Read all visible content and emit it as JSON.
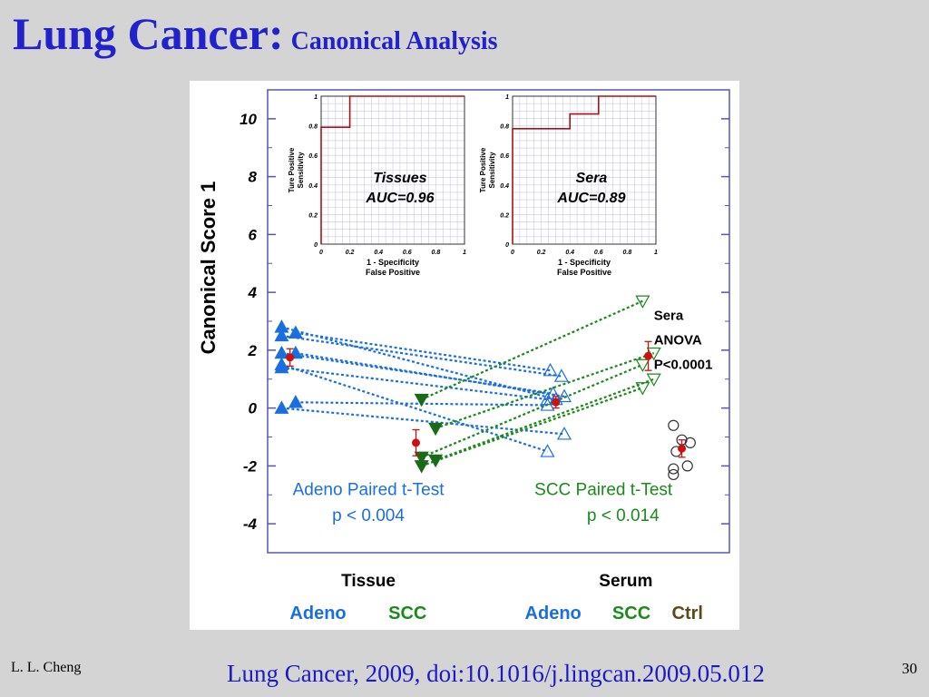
{
  "slide": {
    "title_main": "Lung Cancer:",
    "title_sub": "Canonical Analysis",
    "author": "L. L. Cheng",
    "citation": "Lung Cancer, 2009, doi:10.1016/j.lingcan.2009.05.012",
    "page_number": "30"
  },
  "colors": {
    "title": "#2222cc",
    "adeno": "#1a6fe0",
    "scc": "#1a8a1a",
    "ctrl": "#5a4a1a",
    "mean": "#cc1111",
    "axis_frame": "#5555bb",
    "roc_line": "#b01010"
  },
  "chart_data": [
    {
      "type": "scatter",
      "ylabel": "Canonical Score 1",
      "ylim": [
        -5,
        11
      ],
      "yticks": [
        "10",
        "8",
        "6",
        "4",
        "2",
        "0",
        "-2",
        "-4"
      ],
      "ytick_values": [
        10,
        8,
        6,
        4,
        2,
        0,
        -2,
        -4
      ],
      "group_headers": [
        {
          "label": "Tissue",
          "x": 0.36
        },
        {
          "label": "Serum",
          "x": 1.28
        }
      ],
      "group_labels": [
        {
          "label": "Adeno",
          "x": 0.18,
          "color": "#1a6fe0"
        },
        {
          "label": "SCC",
          "x": 0.5,
          "color": "#1a8a1a"
        },
        {
          "label": "Adeno",
          "x": 1.02,
          "color": "#1a6fe0"
        },
        {
          "label": "SCC",
          "x": 1.3,
          "color": "#1a8a1a"
        },
        {
          "label": "Ctrl",
          "x": 1.5,
          "color": "#5a4a1a"
        }
      ],
      "annotations": [
        {
          "text": "Adeno Paired t-Test",
          "x": 0.36,
          "y": -3.0,
          "color": "#1a6fe0"
        },
        {
          "text": "p < 0.004",
          "x": 0.36,
          "y": -3.9,
          "color": "#1a6fe0"
        },
        {
          "text": "SCC Paired t-Test",
          "x": 1.2,
          "y": -3.0,
          "color": "#1a8a1a"
        },
        {
          "text": "p < 0.014",
          "x": 1.27,
          "y": -3.9,
          "color": "#1a8a1a"
        },
        {
          "text": "Sera",
          "x": 1.38,
          "y": 3.05,
          "color": "#000000"
        },
        {
          "text": "ANOVA",
          "x": 1.38,
          "y": 2.2,
          "color": "#000000"
        },
        {
          "text": "P<0.0001",
          "x": 1.38,
          "y": 1.35,
          "color": "#000000"
        }
      ],
      "adeno_pairs": [
        {
          "tissue": [
            0.1,
            2.6
          ],
          "serum": [
            1.01,
            1.3
          ]
        },
        {
          "tissue": [
            0.05,
            2.5
          ],
          "serum": [
            1.05,
            1.1
          ]
        },
        {
          "tissue": [
            0.05,
            1.9
          ],
          "serum": [
            1.02,
            0.5
          ]
        },
        {
          "tissue": [
            0.1,
            1.9
          ],
          "serum": [
            1.06,
            0.4
          ]
        },
        {
          "tissue": [
            0.05,
            1.4
          ],
          "serum": [
            1.0,
            0.3
          ]
        },
        {
          "tissue": [
            0.05,
            2.8
          ],
          "serum": [
            1.03,
            0.3
          ]
        },
        {
          "tissue": [
            0.1,
            0.2
          ],
          "serum": [
            1.0,
            0.1
          ]
        },
        {
          "tissue": [
            0.05,
            0.0
          ],
          "serum": [
            1.06,
            -0.9
          ]
        },
        {
          "tissue": [
            0.05,
            1.5
          ],
          "serum": [
            1.0,
            -1.5
          ]
        }
      ],
      "scc_pairs": [
        {
          "tissue": [
            0.55,
            0.3
          ],
          "serum": [
            1.34,
            3.7
          ]
        },
        {
          "tissue": [
            0.6,
            -0.7
          ],
          "serum": [
            1.38,
            1.9
          ]
        },
        {
          "tissue": [
            0.55,
            -1.7
          ],
          "serum": [
            1.34,
            1.5
          ]
        },
        {
          "tissue": [
            0.6,
            -1.8
          ],
          "serum": [
            1.38,
            1.0
          ]
        },
        {
          "tissue": [
            0.55,
            -2.0
          ],
          "serum": [
            1.34,
            0.7
          ]
        }
      ],
      "ctrl_points": [
        [
          1.45,
          -0.6
        ],
        [
          1.48,
          -1.1
        ],
        [
          1.51,
          -1.2
        ],
        [
          1.46,
          -1.5
        ],
        [
          1.5,
          -2.0
        ],
        [
          1.45,
          -2.1
        ],
        [
          1.45,
          -2.3
        ]
      ],
      "group_means": [
        {
          "x": 0.08,
          "y": 1.75,
          "err": 0.3,
          "color": "#cc1111"
        },
        {
          "x": 0.53,
          "y": -1.2,
          "err": 0.45,
          "color": "#cc1111"
        },
        {
          "x": 1.03,
          "y": 0.2,
          "err": 0.2,
          "color": "#cc1111"
        },
        {
          "x": 1.36,
          "y": 1.8,
          "err": 0.5,
          "color": "#cc1111"
        },
        {
          "x": 1.48,
          "y": -1.4,
          "err": 0.3,
          "color": "#cc1111"
        }
      ]
    },
    {
      "type": "line",
      "ylabel": "Ture Positive Sensitivity",
      "xlabel": "1 - Specificity",
      "xlabel2": "False Positive",
      "label": "Tissues",
      "auc_text": "AUC=0.96",
      "ticks_x": [
        "0",
        "0.2",
        "0.4",
        "0.6",
        "0.8",
        "1"
      ],
      "ticks_y": [
        "0",
        "0.2",
        "0.4",
        "0.6",
        "0.8",
        "1"
      ],
      "xlim": [
        0,
        1
      ],
      "ylim": [
        0,
        1
      ],
      "x": [
        0,
        0,
        0.2,
        0.2,
        1
      ],
      "y": [
        0,
        0.79,
        0.79,
        1,
        1
      ]
    },
    {
      "type": "line",
      "ylabel": "Ture Positive Sensitivity",
      "xlabel": "1 - Specificity",
      "xlabel2": "False Positive",
      "label": "Sera",
      "auc_text": "AUC=0.89",
      "ticks_x": [
        "0",
        "0.2",
        "0.4",
        "0.6",
        "0.8",
        "1"
      ],
      "ticks_y": [
        "0",
        "0.2",
        "0.4",
        "0.6",
        "0.8",
        "1"
      ],
      "xlim": [
        0,
        1
      ],
      "ylim": [
        0,
        1
      ],
      "x": [
        0,
        0,
        0.4,
        0.4,
        0.6,
        0.6,
        1
      ],
      "y": [
        0,
        0.78,
        0.78,
        0.88,
        0.88,
        1,
        1
      ]
    }
  ]
}
